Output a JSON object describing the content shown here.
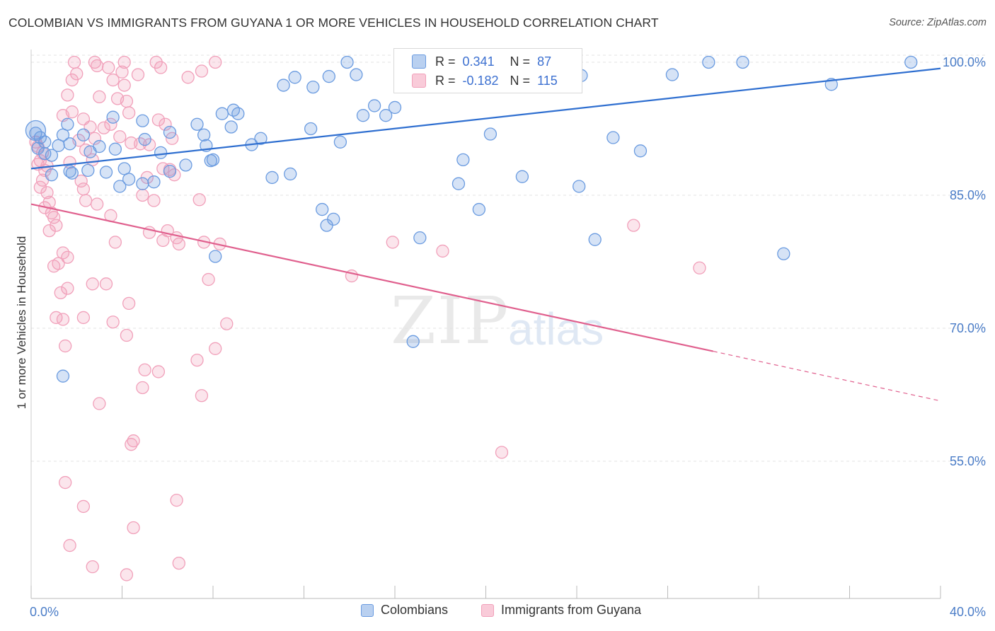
{
  "title": "COLOMBIAN VS IMMIGRANTS FROM GUYANA 1 OR MORE VEHICLES IN HOUSEHOLD CORRELATION CHART",
  "source": "Source: ZipAtlas.com",
  "watermark": {
    "zip": "ZIP",
    "atlas": "atlas"
  },
  "legend_box": {
    "rows": [
      {
        "r_label": "R =",
        "r_value": "0.341",
        "n_label": "N =",
        "n_value": "87"
      },
      {
        "r_label": "R =",
        "r_value": "-0.182",
        "n_label": "N =",
        "n_value": "115"
      }
    ]
  },
  "legend_bottom": {
    "series1": "Colombians",
    "series2": "Immigrants from Guyana"
  },
  "colors": {
    "blue": "#6a9be0",
    "blue_line": "#2f6fd0",
    "pink": "#f1a0ba",
    "pink_line": "#e0608e",
    "axis_text": "#4a7cc7"
  },
  "chart_data": {
    "type": "scatter",
    "title": "COLOMBIAN VS IMMIGRANTS FROM GUYANA 1 OR MORE VEHICLES IN HOUSEHOLD CORRELATION CHART",
    "xlabel": "",
    "ylabel": "1 or more Vehicles in Household",
    "xlim": [
      0,
      40
    ],
    "ylim": [
      40,
      102
    ],
    "x_tick_labels": [
      "0.0%",
      "40.0%"
    ],
    "y_ticks": [
      100,
      85,
      70,
      55
    ],
    "y_tick_labels": [
      "100.0%",
      "85.0%",
      "70.0%",
      "55.0%"
    ],
    "grid": true,
    "legend_position": "bottom",
    "series": [
      {
        "name": "Colombians",
        "r": 0.341,
        "n": 87,
        "trend": {
          "x": [
            0,
            40
          ],
          "y": [
            88.0,
            99.3
          ]
        },
        "points": [
          [
            0.2,
            92.0
          ],
          [
            0.4,
            91.5
          ],
          [
            0.6,
            91.0
          ],
          [
            0.3,
            90.3
          ],
          [
            0.9,
            89.5
          ],
          [
            1.4,
            91.8
          ],
          [
            1.7,
            90.8
          ],
          [
            2.3,
            91.8
          ],
          [
            2.6,
            89.9
          ],
          [
            1.6,
            93.0
          ],
          [
            3.0,
            90.5
          ],
          [
            3.7,
            90.2
          ],
          [
            4.1,
            88.0
          ],
          [
            2.5,
            87.8
          ],
          [
            3.3,
            87.6
          ],
          [
            1.7,
            87.7
          ],
          [
            0.9,
            87.3
          ],
          [
            1.8,
            87.5
          ],
          [
            4.3,
            86.8
          ],
          [
            5.4,
            86.5
          ],
          [
            4.9,
            86.3
          ],
          [
            3.9,
            86.0
          ],
          [
            0.6,
            89.7
          ],
          [
            1.2,
            90.6
          ],
          [
            3.6,
            93.8
          ],
          [
            4.9,
            93.4
          ],
          [
            5.0,
            91.3
          ],
          [
            6.1,
            92.1
          ],
          [
            5.7,
            89.8
          ],
          [
            6.1,
            87.7
          ],
          [
            6.8,
            88.4
          ],
          [
            7.3,
            93.0
          ],
          [
            7.7,
            90.6
          ],
          [
            7.6,
            91.8
          ],
          [
            8.0,
            89.0
          ],
          [
            8.4,
            94.2
          ],
          [
            8.9,
            94.6
          ],
          [
            7.9,
            88.9
          ],
          [
            8.8,
            92.7
          ],
          [
            9.7,
            90.7
          ],
          [
            9.1,
            94.2
          ],
          [
            10.1,
            91.4
          ],
          [
            10.6,
            87.0
          ],
          [
            11.4,
            87.4
          ],
          [
            11.1,
            97.4
          ],
          [
            11.6,
            98.3
          ],
          [
            12.4,
            97.2
          ],
          [
            12.3,
            92.5
          ],
          [
            13.1,
            98.4
          ],
          [
            13.9,
            100.0
          ],
          [
            14.3,
            98.6
          ],
          [
            14.6,
            94.0
          ],
          [
            13.6,
            91.0
          ],
          [
            15.1,
            95.1
          ],
          [
            15.6,
            94.0
          ],
          [
            16.0,
            94.9
          ],
          [
            16.5,
            97.5
          ],
          [
            17.0,
            98.4
          ],
          [
            18.2,
            100.0
          ],
          [
            18.7,
            100.0
          ],
          [
            18.6,
            97.7
          ],
          [
            19.0,
            89.0
          ],
          [
            20.2,
            91.9
          ],
          [
            20.8,
            100.0
          ],
          [
            21.6,
            87.1
          ],
          [
            22.6,
            100.0
          ],
          [
            23.2,
            100.0
          ],
          [
            24.2,
            98.5
          ],
          [
            25.6,
            91.5
          ],
          [
            26.8,
            90.0
          ],
          [
            28.2,
            98.6
          ],
          [
            29.8,
            100.0
          ],
          [
            31.3,
            100.0
          ],
          [
            35.2,
            97.5
          ],
          [
            1.4,
            64.6
          ],
          [
            8.1,
            78.1
          ],
          [
            12.8,
            83.4
          ],
          [
            13.0,
            81.6
          ],
          [
            13.3,
            82.3
          ],
          [
            16.8,
            68.5
          ],
          [
            17.1,
            80.2
          ],
          [
            18.8,
            86.3
          ],
          [
            19.7,
            83.4
          ],
          [
            24.8,
            80.0
          ],
          [
            33.1,
            78.4
          ],
          [
            38.7,
            100.0
          ],
          [
            24.1,
            86.0
          ]
        ]
      },
      {
        "name": "Immigrants from Guyana",
        "r": -0.182,
        "n": 115,
        "trend": {
          "x": [
            0,
            30
          ],
          "y": [
            84.0,
            67.4
          ]
        },
        "trend_dashed": {
          "x": [
            30,
            40
          ],
          "y": [
            67.4,
            61.8
          ]
        },
        "points": [
          [
            0.2,
            91.0
          ],
          [
            0.3,
            90.5
          ],
          [
            0.5,
            89.8
          ],
          [
            0.4,
            88.9
          ],
          [
            0.3,
            88.5
          ],
          [
            0.6,
            87.8
          ],
          [
            0.5,
            86.7
          ],
          [
            0.4,
            85.9
          ],
          [
            0.7,
            85.3
          ],
          [
            0.8,
            84.2
          ],
          [
            0.6,
            83.6
          ],
          [
            0.9,
            83.0
          ],
          [
            1.0,
            82.5
          ],
          [
            1.1,
            81.6
          ],
          [
            0.8,
            81.0
          ],
          [
            1.4,
            78.5
          ],
          [
            1.6,
            78.0
          ],
          [
            1.2,
            77.3
          ],
          [
            1.0,
            77.0
          ],
          [
            1.3,
            74.0
          ],
          [
            1.6,
            74.5
          ],
          [
            1.1,
            71.2
          ],
          [
            1.4,
            71.0
          ],
          [
            1.5,
            68.0
          ],
          [
            2.3,
            71.2
          ],
          [
            2.7,
            75.0
          ],
          [
            3.6,
            70.7
          ],
          [
            3.3,
            75.0
          ],
          [
            1.8,
            98.0
          ],
          [
            1.6,
            96.3
          ],
          [
            1.4,
            94.0
          ],
          [
            1.8,
            94.4
          ],
          [
            2.3,
            93.6
          ],
          [
            2.6,
            92.7
          ],
          [
            2.1,
            91.2
          ],
          [
            2.8,
            91.4
          ],
          [
            2.4,
            90.1
          ],
          [
            2.7,
            89.0
          ],
          [
            1.7,
            88.7
          ],
          [
            2.2,
            86.6
          ],
          [
            2.3,
            85.7
          ],
          [
            2.4,
            84.4
          ],
          [
            2.9,
            84.0
          ],
          [
            3.5,
            82.7
          ],
          [
            3.7,
            79.7
          ],
          [
            2.0,
            98.7
          ],
          [
            2.8,
            100.0
          ],
          [
            3.4,
            99.4
          ],
          [
            4.0,
            98.9
          ],
          [
            4.7,
            98.6
          ],
          [
            3.6,
            98.0
          ],
          [
            4.1,
            97.4
          ],
          [
            3.0,
            96.1
          ],
          [
            3.8,
            95.9
          ],
          [
            4.2,
            95.6
          ],
          [
            4.3,
            94.3
          ],
          [
            3.5,
            93.0
          ],
          [
            3.2,
            92.6
          ],
          [
            3.9,
            91.6
          ],
          [
            4.4,
            90.9
          ],
          [
            4.8,
            90.8
          ],
          [
            5.2,
            90.7
          ],
          [
            5.6,
            93.5
          ],
          [
            5.9,
            93.0
          ],
          [
            6.2,
            91.4
          ],
          [
            5.8,
            88.0
          ],
          [
            6.1,
            87.9
          ],
          [
            6.3,
            87.3
          ],
          [
            5.1,
            87.0
          ],
          [
            4.9,
            85.0
          ],
          [
            5.4,
            84.4
          ],
          [
            6.0,
            81.0
          ],
          [
            5.2,
            80.8
          ],
          [
            5.8,
            79.9
          ],
          [
            6.5,
            79.5
          ],
          [
            6.4,
            80.2
          ],
          [
            7.4,
            84.5
          ],
          [
            7.6,
            79.7
          ],
          [
            8.3,
            79.5
          ],
          [
            6.9,
            98.3
          ],
          [
            7.5,
            99.0
          ],
          [
            8.1,
            100.0
          ],
          [
            5.5,
            100.0
          ],
          [
            4.1,
            100.0
          ],
          [
            5.7,
            99.4
          ],
          [
            1.9,
            100.0
          ],
          [
            2.9,
            99.6
          ],
          [
            4.3,
            72.8
          ],
          [
            4.2,
            69.2
          ],
          [
            5.0,
            65.3
          ],
          [
            5.6,
            65.1
          ],
          [
            4.9,
            63.3
          ],
          [
            3.0,
            61.5
          ],
          [
            7.3,
            66.4
          ],
          [
            8.1,
            67.7
          ],
          [
            8.6,
            70.5
          ],
          [
            7.5,
            62.4
          ],
          [
            7.8,
            75.5
          ],
          [
            4.5,
            57.3
          ],
          [
            4.4,
            56.9
          ],
          [
            1.5,
            52.6
          ],
          [
            2.3,
            49.9
          ],
          [
            4.5,
            47.5
          ],
          [
            1.7,
            45.5
          ],
          [
            2.7,
            43.1
          ],
          [
            4.2,
            42.2
          ],
          [
            6.4,
            50.6
          ],
          [
            6.5,
            43.5
          ],
          [
            14.1,
            75.9
          ],
          [
            15.9,
            79.7
          ],
          [
            18.1,
            78.7
          ],
          [
            20.7,
            56.0
          ],
          [
            26.5,
            81.6
          ],
          [
            29.4,
            76.8
          ],
          [
            0.7,
            88.3
          ]
        ]
      }
    ]
  }
}
